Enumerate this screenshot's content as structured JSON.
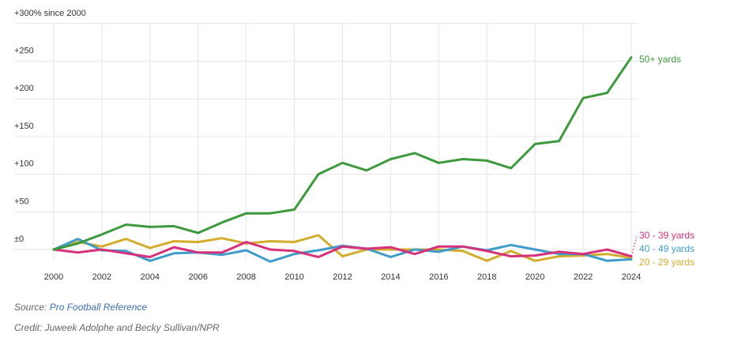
{
  "chart_data": {
    "type": "line",
    "title": "",
    "xlabel": "",
    "ylabel": "",
    "x": [
      2000,
      2001,
      2002,
      2003,
      2004,
      2005,
      2006,
      2007,
      2008,
      2009,
      2010,
      2011,
      2012,
      2013,
      2014,
      2015,
      2016,
      2017,
      2018,
      2019,
      2020,
      2021,
      2022,
      2023,
      2024
    ],
    "xticks": [
      "2000",
      "2002",
      "2004",
      "2006",
      "2008",
      "2010",
      "2012",
      "2014",
      "2016",
      "2018",
      "2020",
      "2022",
      "2024"
    ],
    "ylim": [
      -15,
      300
    ],
    "yticks": [
      {
        "value": 300,
        "label": "+300% since 2000"
      },
      {
        "value": 250,
        "label": "+250"
      },
      {
        "value": 200,
        "label": "+200"
      },
      {
        "value": 150,
        "label": "+150"
      },
      {
        "value": 100,
        "label": "+100"
      },
      {
        "value": 50,
        "label": "+50"
      },
      {
        "value": 0,
        "label": "±0"
      }
    ],
    "grid": true,
    "series": [
      {
        "name": "50+ yards",
        "color": "#3c9a3c",
        "values": [
          0,
          8,
          20,
          33,
          30,
          31,
          22,
          36,
          48,
          48,
          53,
          100,
          115,
          105,
          120,
          128,
          115,
          120,
          118,
          108,
          140,
          144,
          201,
          208,
          255
        ]
      },
      {
        "name": "30 - 39 yards",
        "color": "#d6317a",
        "values": [
          0,
          -4,
          0,
          -5,
          -10,
          3,
          -4,
          -4,
          10,
          0,
          -2,
          -10,
          4,
          1,
          3,
          -6,
          4,
          4,
          -2,
          -9,
          -8,
          -3,
          -6,
          0,
          -9
        ]
      },
      {
        "name": "40 - 49 yards",
        "color": "#3d9ccc",
        "values": [
          0,
          14,
          -1,
          -2,
          -15,
          -5,
          -4,
          -7,
          -1,
          -16,
          -6,
          -1,
          5,
          1,
          -10,
          0,
          -3,
          4,
          -1,
          6,
          0,
          -6,
          -6,
          -15,
          -13
        ]
      },
      {
        "name": "20 - 29 yards",
        "color": "#d4ac2c",
        "values": [
          0,
          10,
          4,
          14,
          2,
          11,
          10,
          15,
          8,
          11,
          10,
          19,
          -9,
          0,
          0,
          0,
          0,
          -2,
          -15,
          -2,
          -15,
          -9,
          -8,
          -6,
          -11
        ]
      }
    ]
  },
  "footer": {
    "source_label": "Source: ",
    "source_name": "Pro Football Reference",
    "credit": "Credit: Juweek Adolphe and Becky Sullivan/NPR"
  }
}
